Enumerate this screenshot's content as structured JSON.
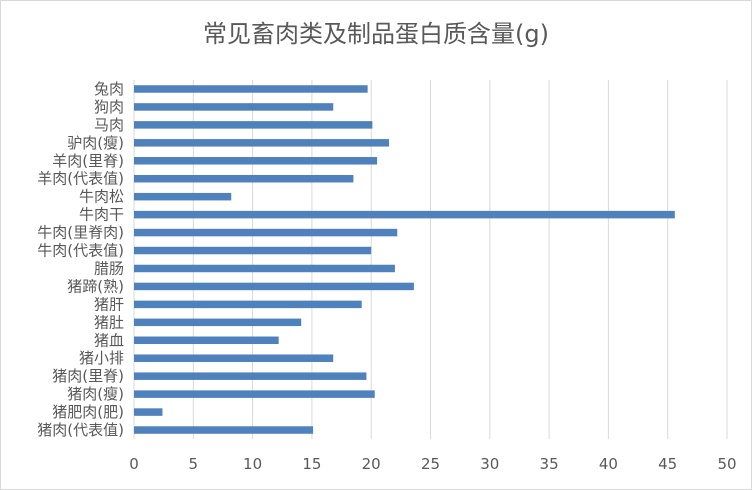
{
  "chart_data": {
    "type": "bar",
    "orientation": "horizontal",
    "title": "常见畜肉类及制品蛋白质含量(g)",
    "xlabel": "",
    "ylabel": "",
    "xlim": [
      0,
      50
    ],
    "ticks": [
      0,
      5,
      10,
      15,
      20,
      25,
      30,
      35,
      40,
      45,
      50
    ],
    "grid": "vertical",
    "bar_color": "#4f81bd",
    "categories": [
      "兔肉",
      "狗肉",
      "马肉",
      "驴肉(瘦)",
      "羊肉(里脊)",
      "羊肉(代表值)",
      "牛肉松",
      "牛肉干",
      "牛肉(里脊肉)",
      "牛肉(代表值)",
      "腊肠",
      "猪蹄(熟)",
      "猪肝",
      "猪肚",
      "猪血",
      "猪小排",
      "猪肉(里脊)",
      "猪肉(瘦)",
      "猪肥肉(肥)",
      "猪肉(代表值)"
    ],
    "values": [
      19.7,
      16.8,
      20.1,
      21.5,
      20.5,
      18.5,
      8.2,
      45.6,
      22.2,
      20.0,
      22.0,
      23.6,
      19.2,
      14.1,
      12.2,
      16.8,
      19.6,
      20.3,
      2.4,
      15.1
    ]
  }
}
